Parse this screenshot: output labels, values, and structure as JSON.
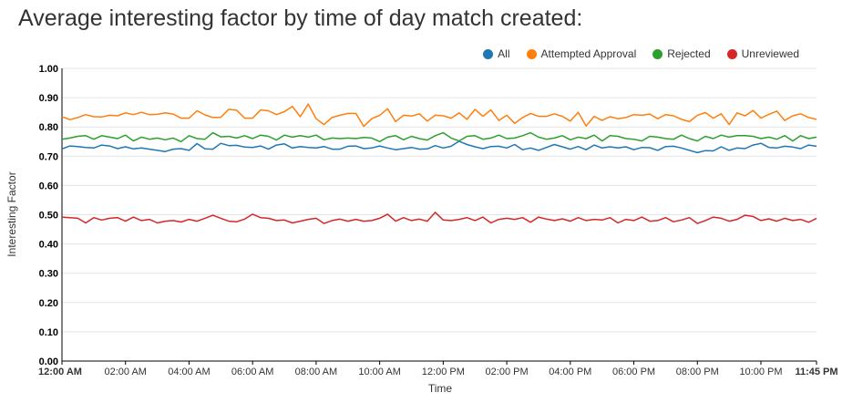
{
  "page": {
    "title": "Average interesting factor by time of day match created:"
  },
  "colors": {
    "all": "#1f77b4",
    "attempted": "#ff7f0e",
    "rejected": "#2ca02c",
    "unreviewed": "#d62728"
  },
  "chart_data": {
    "type": "line",
    "title": "",
    "xlabel": "Time",
    "ylabel": "Interesting Factor",
    "ylim": [
      0,
      1
    ],
    "yticks": [
      "0.00",
      "0.10",
      "0.20",
      "0.30",
      "0.40",
      "0.50",
      "0.60",
      "0.70",
      "0.80",
      "0.90",
      "1.00"
    ],
    "xlim": [
      "00:00",
      "23:45"
    ],
    "xticks": [
      {
        "label": "12:00 AM",
        "bold": true
      },
      {
        "label": "02:00 AM"
      },
      {
        "label": "04:00 AM"
      },
      {
        "label": "06:00 AM"
      },
      {
        "label": "08:00 AM"
      },
      {
        "label": "10:00 AM"
      },
      {
        "label": "12:00 PM"
      },
      {
        "label": "02:00 PM"
      },
      {
        "label": "04:00 PM"
      },
      {
        "label": "06:00 PM"
      },
      {
        "label": "08:00 PM"
      },
      {
        "label": "10:00 PM"
      },
      {
        "label": "11:45 PM",
        "bold": true
      }
    ],
    "grid": "horizontal",
    "legend_position": "top-right",
    "interval_minutes": 15,
    "series": [
      {
        "name": "All",
        "color": "#1f77b4",
        "values": [
          0.725,
          0.735,
          0.733,
          0.73,
          0.728,
          0.738,
          0.735,
          0.726,
          0.732,
          0.725,
          0.728,
          0.724,
          0.72,
          0.716,
          0.724,
          0.726,
          0.72,
          0.743,
          0.725,
          0.724,
          0.744,
          0.736,
          0.737,
          0.731,
          0.73,
          0.735,
          0.724,
          0.738,
          0.742,
          0.728,
          0.733,
          0.73,
          0.728,
          0.733,
          0.724,
          0.724,
          0.734,
          0.735,
          0.726,
          0.728,
          0.735,
          0.728,
          0.722,
          0.726,
          0.73,
          0.724,
          0.725,
          0.736,
          0.728,
          0.734,
          0.751,
          0.74,
          0.732,
          0.726,
          0.733,
          0.734,
          0.728,
          0.74,
          0.722,
          0.728,
          0.72,
          0.73,
          0.74,
          0.732,
          0.724,
          0.733,
          0.722,
          0.738,
          0.728,
          0.732,
          0.728,
          0.732,
          0.722,
          0.73,
          0.729,
          0.72,
          0.733,
          0.734,
          0.728,
          0.72,
          0.712,
          0.719,
          0.718,
          0.732,
          0.72,
          0.728,
          0.726,
          0.738,
          0.744,
          0.73,
          0.728,
          0.734,
          0.731,
          0.726,
          0.738,
          0.734
        ]
      },
      {
        "name": "Attempted Approval",
        "color": "#ff7f0e",
        "values": [
          0.835,
          0.825,
          0.832,
          0.842,
          0.835,
          0.834,
          0.84,
          0.838,
          0.848,
          0.842,
          0.85,
          0.842,
          0.843,
          0.848,
          0.844,
          0.83,
          0.83,
          0.855,
          0.841,
          0.832,
          0.833,
          0.86,
          0.857,
          0.83,
          0.83,
          0.858,
          0.855,
          0.842,
          0.852,
          0.87,
          0.835,
          0.878,
          0.828,
          0.808,
          0.832,
          0.84,
          0.846,
          0.846,
          0.802,
          0.828,
          0.84,
          0.862,
          0.818,
          0.84,
          0.837,
          0.845,
          0.82,
          0.84,
          0.838,
          0.83,
          0.848,
          0.826,
          0.86,
          0.836,
          0.858,
          0.822,
          0.84,
          0.812,
          0.832,
          0.846,
          0.836,
          0.836,
          0.845,
          0.836,
          0.82,
          0.85,
          0.803,
          0.836,
          0.822,
          0.835,
          0.828,
          0.832,
          0.842,
          0.84,
          0.844,
          0.828,
          0.842,
          0.838,
          0.826,
          0.818,
          0.84,
          0.849,
          0.83,
          0.845,
          0.808,
          0.848,
          0.838,
          0.856,
          0.83,
          0.843,
          0.854,
          0.822,
          0.838,
          0.845,
          0.832,
          0.826
        ]
      },
      {
        "name": "Rejected",
        "color": "#2ca02c",
        "values": [
          0.758,
          0.762,
          0.768,
          0.77,
          0.758,
          0.77,
          0.765,
          0.76,
          0.772,
          0.752,
          0.765,
          0.758,
          0.762,
          0.756,
          0.762,
          0.75,
          0.77,
          0.76,
          0.758,
          0.78,
          0.766,
          0.768,
          0.762,
          0.77,
          0.76,
          0.772,
          0.768,
          0.755,
          0.772,
          0.765,
          0.77,
          0.765,
          0.772,
          0.756,
          0.762,
          0.76,
          0.762,
          0.76,
          0.764,
          0.762,
          0.75,
          0.765,
          0.77,
          0.756,
          0.768,
          0.76,
          0.755,
          0.77,
          0.78,
          0.762,
          0.752,
          0.768,
          0.77,
          0.758,
          0.762,
          0.772,
          0.76,
          0.762,
          0.77,
          0.78,
          0.765,
          0.758,
          0.762,
          0.77,
          0.756,
          0.765,
          0.76,
          0.772,
          0.752,
          0.77,
          0.768,
          0.76,
          0.758,
          0.752,
          0.768,
          0.765,
          0.76,
          0.758,
          0.772,
          0.76,
          0.752,
          0.768,
          0.76,
          0.772,
          0.765,
          0.77,
          0.77,
          0.768,
          0.76,
          0.765,
          0.758,
          0.77,
          0.752,
          0.77,
          0.76,
          0.765
        ]
      },
      {
        "name": "Unreviewed",
        "color": "#d62728",
        "values": [
          0.492,
          0.49,
          0.488,
          0.472,
          0.49,
          0.482,
          0.488,
          0.49,
          0.478,
          0.492,
          0.48,
          0.484,
          0.472,
          0.478,
          0.48,
          0.475,
          0.484,
          0.478,
          0.488,
          0.498,
          0.488,
          0.478,
          0.476,
          0.485,
          0.502,
          0.49,
          0.488,
          0.48,
          0.482,
          0.472,
          0.478,
          0.484,
          0.488,
          0.47,
          0.48,
          0.485,
          0.478,
          0.484,
          0.478,
          0.48,
          0.488,
          0.502,
          0.478,
          0.49,
          0.48,
          0.485,
          0.478,
          0.508,
          0.482,
          0.48,
          0.484,
          0.49,
          0.48,
          0.492,
          0.472,
          0.484,
          0.488,
          0.484,
          0.49,
          0.474,
          0.492,
          0.485,
          0.48,
          0.486,
          0.478,
          0.49,
          0.48,
          0.484,
          0.482,
          0.49,
          0.472,
          0.484,
          0.48,
          0.492,
          0.478,
          0.48,
          0.49,
          0.476,
          0.482,
          0.49,
          0.47,
          0.48,
          0.492,
          0.488,
          0.478,
          0.484,
          0.498,
          0.494,
          0.48,
          0.486,
          0.478,
          0.488,
          0.48,
          0.484,
          0.474,
          0.488
        ]
      }
    ]
  }
}
